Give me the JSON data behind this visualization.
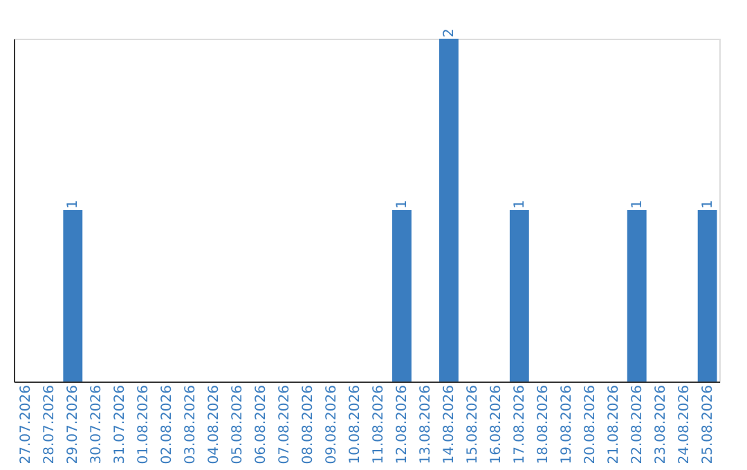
{
  "chart_data": {
    "type": "bar",
    "categories": [
      "27.07.2026",
      "28.07.2026",
      "29.07.2026",
      "30.07.2026",
      "31.07.2026",
      "01.08.2026",
      "02.08.2026",
      "03.08.2026",
      "04.08.2026",
      "05.08.2026",
      "06.08.2026",
      "07.08.2026",
      "08.08.2026",
      "09.08.2026",
      "10.08.2026",
      "11.08.2026",
      "12.08.2026",
      "13.08.2026",
      "14.08.2026",
      "15.08.2026",
      "16.08.2026",
      "17.08.2026",
      "18.08.2026",
      "19.08.2026",
      "20.08.2026",
      "21.08.2026",
      "22.08.2026",
      "23.08.2026",
      "24.08.2026",
      "25.08.2026"
    ],
    "values": [
      0,
      0,
      1,
      0,
      0,
      0,
      0,
      0,
      0,
      0,
      0,
      0,
      0,
      0,
      0,
      0,
      1,
      0,
      2,
      0,
      0,
      1,
      0,
      0,
      0,
      0,
      1,
      0,
      0,
      1
    ],
    "value_labels": [
      null,
      null,
      "1",
      null,
      null,
      null,
      null,
      null,
      null,
      null,
      null,
      null,
      null,
      null,
      null,
      null,
      "1",
      null,
      "2",
      null,
      null,
      "1",
      null,
      null,
      null,
      null,
      "1",
      null,
      null,
      "1"
    ],
    "color": "#3a7dc0",
    "ylim": [
      0,
      2
    ],
    "tick_labels": "x",
    "grid": false
  }
}
